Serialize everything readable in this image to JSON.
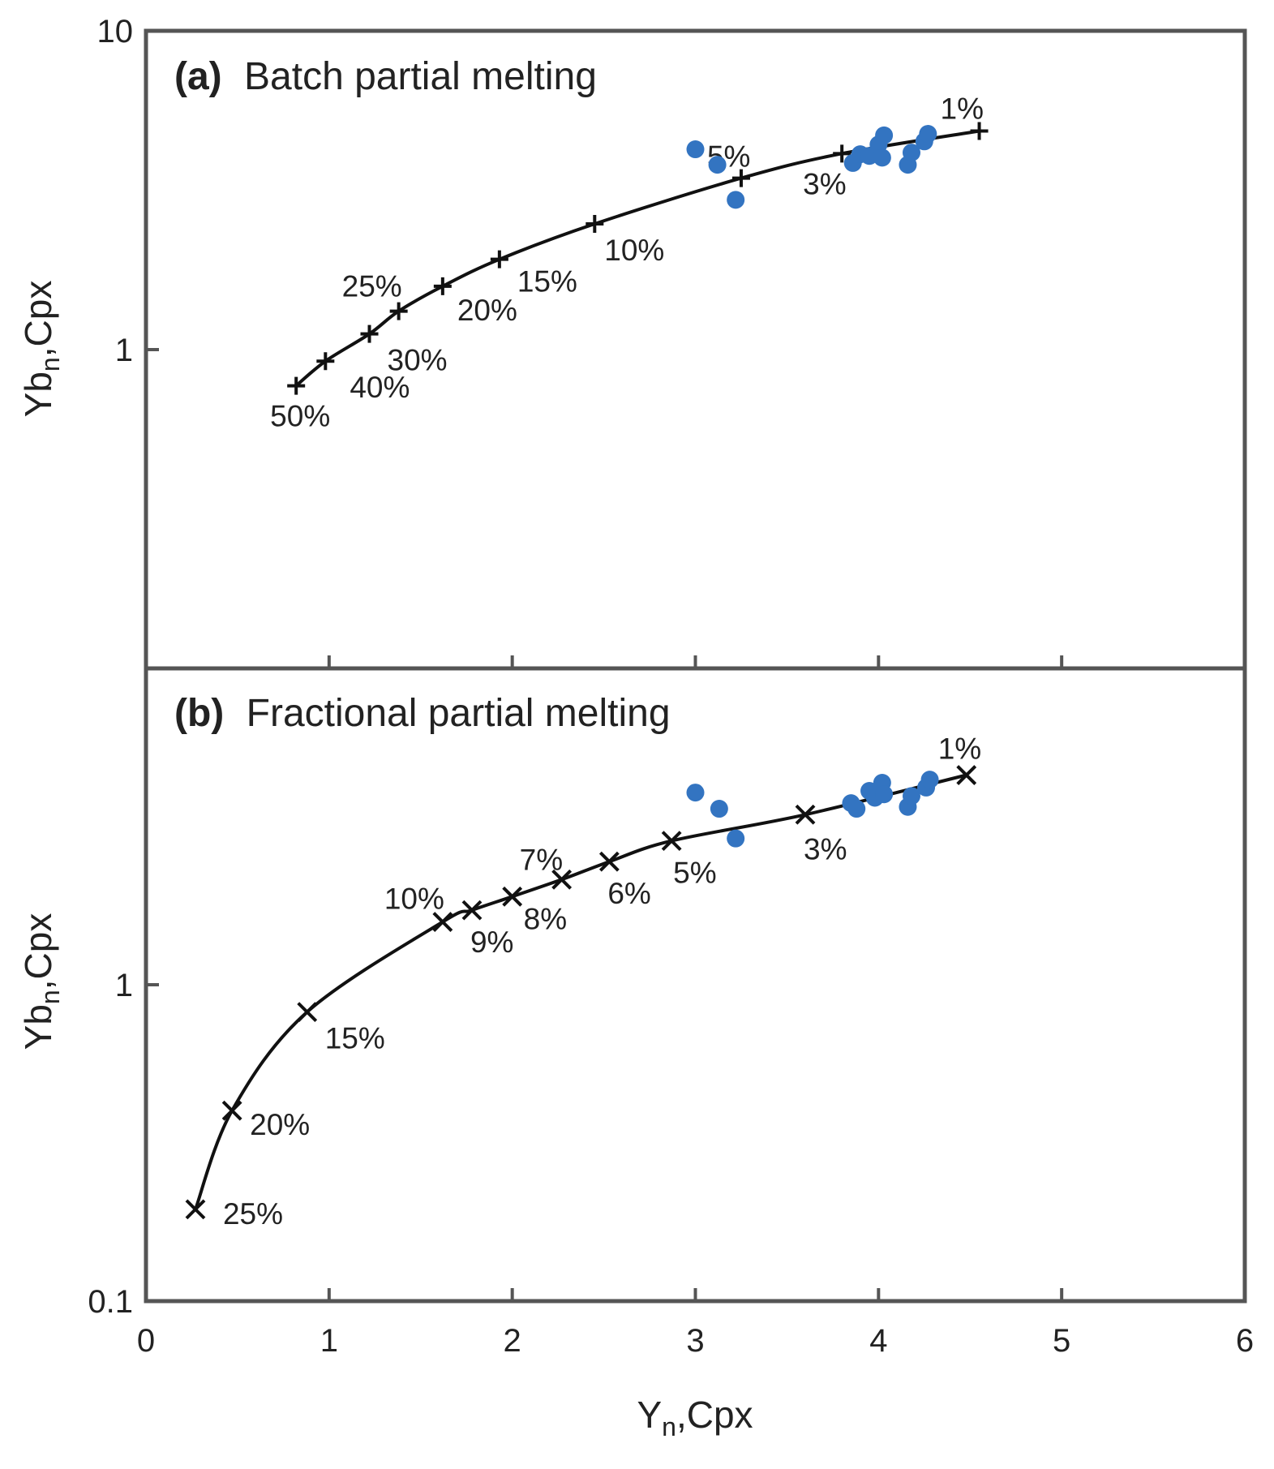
{
  "chart_data": [
    {
      "id": "a",
      "type": "scatter",
      "title": "(a) Batch partial melting",
      "title_bold": "(a)",
      "title_text": "Batch partial melting",
      "xlabel": "Y",
      "xlabel_sub": "n",
      "xlabel_suffix": ",Cpx",
      "ylabel": "Yb",
      "ylabel_sub": "n",
      "ylabel_suffix": ",Cpx",
      "yscale": "log",
      "xlim": [
        0,
        6
      ],
      "ylim": [
        0.1,
        10
      ],
      "yticks": [
        {
          "value": 10,
          "label": "10"
        },
        {
          "value": 1,
          "label": "1"
        }
      ],
      "model_marker": "plus",
      "model_curve": [
        {
          "x": 0.82,
          "y": 0.77,
          "label": "50%"
        },
        {
          "x": 0.98,
          "y": 0.92,
          "label": "40%"
        },
        {
          "x": 1.22,
          "y": 1.12,
          "label": "30%"
        },
        {
          "x": 1.38,
          "y": 1.32,
          "label": "25%"
        },
        {
          "x": 1.62,
          "y": 1.58,
          "label": "20%"
        },
        {
          "x": 1.93,
          "y": 1.92,
          "label": "15%"
        },
        {
          "x": 2.45,
          "y": 2.48,
          "label": "10%"
        },
        {
          "x": 3.25,
          "y": 3.45,
          "label": "5%"
        },
        {
          "x": 3.8,
          "y": 4.12,
          "label": "3%"
        },
        {
          "x": 4.55,
          "y": 4.85,
          "label": "1%"
        }
      ],
      "samples": {
        "color": "#3374c1",
        "points": [
          {
            "x": 3.0,
            "y": 4.25
          },
          {
            "x": 3.12,
            "y": 3.8
          },
          {
            "x": 3.22,
            "y": 2.95
          },
          {
            "x": 3.86,
            "y": 3.85
          },
          {
            "x": 3.9,
            "y": 4.1
          },
          {
            "x": 3.95,
            "y": 4.05
          },
          {
            "x": 4.0,
            "y": 4.4
          },
          {
            "x": 4.02,
            "y": 4.0
          },
          {
            "x": 4.03,
            "y": 4.7
          },
          {
            "x": 4.16,
            "y": 3.8
          },
          {
            "x": 4.18,
            "y": 4.15
          },
          {
            "x": 4.25,
            "y": 4.5
          },
          {
            "x": 4.27,
            "y": 4.75
          }
        ]
      }
    },
    {
      "id": "b",
      "type": "scatter",
      "title": "(b) Fractional partial melting",
      "title_bold": "(b)",
      "title_text": "Fractional partial melting",
      "xlabel": "Y",
      "xlabel_sub": "n",
      "xlabel_suffix": ",Cpx",
      "ylabel": "Yb",
      "ylabel_sub": "n",
      "ylabel_suffix": ",Cpx",
      "yscale": "log",
      "xlim": [
        0,
        6
      ],
      "ylim": [
        0.1,
        10
      ],
      "xticks": [
        {
          "value": 0,
          "label": "0"
        },
        {
          "value": 1,
          "label": "1"
        },
        {
          "value": 2,
          "label": "2"
        },
        {
          "value": 3,
          "label": "3"
        },
        {
          "value": 4,
          "label": "4"
        },
        {
          "value": 5,
          "label": "5"
        },
        {
          "value": 6,
          "label": "6"
        }
      ],
      "yticks": [
        {
          "value": 1,
          "label": "1"
        },
        {
          "value": 0.1,
          "label": "0.1"
        }
      ],
      "model_marker": "cross",
      "model_curve": [
        {
          "x": 0.27,
          "y": 0.195,
          "label": "25%"
        },
        {
          "x": 0.47,
          "y": 0.4,
          "label": "20%"
        },
        {
          "x": 0.88,
          "y": 0.82,
          "label": "15%"
        },
        {
          "x": 1.62,
          "y": 1.58,
          "label": "10%"
        },
        {
          "x": 1.78,
          "y": 1.72,
          "label": "9%"
        },
        {
          "x": 2.0,
          "y": 1.9,
          "label": "8%"
        },
        {
          "x": 2.27,
          "y": 2.15,
          "label": "7%"
        },
        {
          "x": 2.53,
          "y": 2.45,
          "label": "6%"
        },
        {
          "x": 2.87,
          "y": 2.85,
          "label": "5%"
        },
        {
          "x": 3.6,
          "y": 3.45,
          "label": "3%"
        },
        {
          "x": 4.48,
          "y": 4.6,
          "label": "1%"
        }
      ],
      "samples": {
        "color": "#3374c1",
        "points": [
          {
            "x": 3.0,
            "y": 4.05
          },
          {
            "x": 3.13,
            "y": 3.6
          },
          {
            "x": 3.22,
            "y": 2.9
          },
          {
            "x": 3.85,
            "y": 3.75
          },
          {
            "x": 3.88,
            "y": 3.6
          },
          {
            "x": 3.95,
            "y": 4.1
          },
          {
            "x": 3.98,
            "y": 3.9
          },
          {
            "x": 4.02,
            "y": 4.35
          },
          {
            "x": 4.03,
            "y": 4.0
          },
          {
            "x": 4.16,
            "y": 3.65
          },
          {
            "x": 4.18,
            "y": 3.95
          },
          {
            "x": 4.26,
            "y": 4.2
          },
          {
            "x": 4.28,
            "y": 4.45
          }
        ]
      }
    }
  ]
}
